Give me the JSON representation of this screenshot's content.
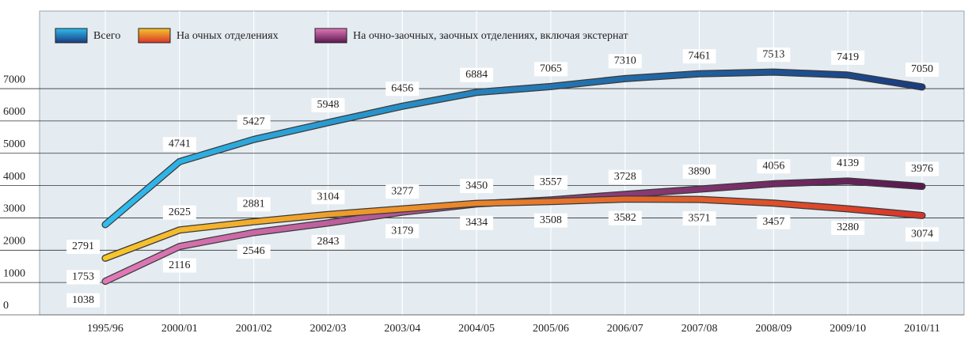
{
  "chart_data": {
    "type": "line",
    "categories": [
      "1995/96",
      "2000/01",
      "2001/02",
      "2002/03",
      "2003/04",
      "2004/05",
      "2005/06",
      "2006/07",
      "2007/08",
      "2008/09",
      "2009/10",
      "2010/11"
    ],
    "series": [
      {
        "name": "Всего",
        "colors": [
          "#2fbdef",
          "#1a3c80"
        ],
        "values": [
          2791,
          4741,
          5427,
          5948,
          6456,
          6884,
          7065,
          7310,
          7461,
          7513,
          7419,
          7050
        ]
      },
      {
        "name": "На очных отделениях",
        "colors": [
          "#f7c62c",
          "#d8352a"
        ],
        "values": [
          1753,
          2625,
          2881,
          3104,
          3277,
          3450,
          3508,
          3582,
          3571,
          3457,
          3280,
          3074
        ]
      },
      {
        "name": "На очно-заочных, заочных отделениях, включая экстернат",
        "colors": [
          "#e27ab8",
          "#5a1850"
        ],
        "values": [
          1038,
          2116,
          2546,
          2843,
          3179,
          3434,
          3557,
          3728,
          3890,
          4056,
          4139,
          3976
        ]
      }
    ],
    "ylim": [
      0,
      9400
    ],
    "yticks": [
      0,
      1000,
      2000,
      3000,
      4000,
      5000,
      6000,
      7000
    ],
    "grid": true,
    "legend": "top-left"
  }
}
